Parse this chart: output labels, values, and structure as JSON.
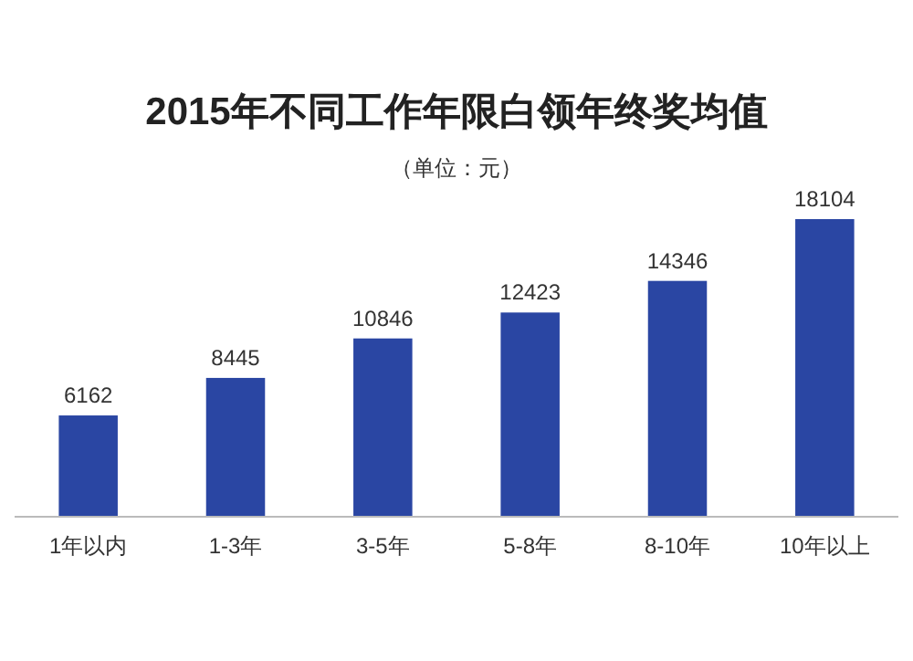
{
  "chart_data": {
    "type": "bar",
    "title": "2015年不同工作年限白领年终奖均值",
    "subtitle": "（单位：元）",
    "categories": [
      "1年以内",
      "1-3年",
      "3-5年",
      "5-8年",
      "8-10年",
      "10年以上"
    ],
    "values": [
      6162,
      8445,
      10846,
      12423,
      14346,
      18104
    ],
    "color": "#2a46a3",
    "data_labels": true
  }
}
